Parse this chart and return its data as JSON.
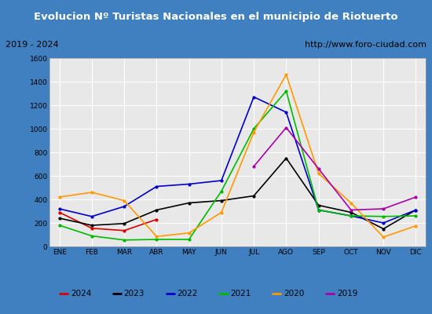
{
  "title": "Evolucion Nº Turistas Nacionales en el municipio de Riotuerto",
  "subtitle_left": "2019 - 2024",
  "subtitle_right": "http://www.foro-ciudad.com",
  "months": [
    "ENE",
    "FEB",
    "MAR",
    "ABR",
    "MAY",
    "JUN",
    "JUL",
    "AGO",
    "SEP",
    "OCT",
    "NOV",
    "DIC"
  ],
  "series": {
    "2024": [
      290,
      155,
      135,
      230,
      null,
      null,
      null,
      null,
      null,
      null,
      null,
      null
    ],
    "2023": [
      240,
      180,
      195,
      310,
      370,
      390,
      430,
      750,
      350,
      290,
      150,
      310
    ],
    "2022": [
      320,
      255,
      340,
      510,
      530,
      560,
      1270,
      1140,
      310,
      260,
      200,
      310
    ],
    "2021": [
      180,
      90,
      55,
      60,
      60,
      470,
      1000,
      1320,
      310,
      260,
      255,
      260
    ],
    "2020": [
      420,
      460,
      390,
      85,
      115,
      290,
      970,
      1460,
      620,
      370,
      80,
      175
    ],
    "2019": [
      null,
      null,
      null,
      null,
      null,
      null,
      680,
      1010,
      660,
      310,
      320,
      420
    ]
  },
  "colors": {
    "2024": "#dd0000",
    "2023": "#000000",
    "2022": "#0000cc",
    "2021": "#00bb00",
    "2020": "#ff9900",
    "2019": "#aa00aa"
  },
  "ylim": [
    0,
    1600
  ],
  "yticks": [
    0,
    200,
    400,
    600,
    800,
    1000,
    1200,
    1400,
    1600
  ],
  "title_bg_color": "#4080c0",
  "title_text_color": "#ffffff",
  "plot_bg_color": "#e8e8e8",
  "header_bg_color": "#d0d0d0",
  "grid_color": "#ffffff",
  "outer_bg_color": "#4080c0",
  "legend_bg_color": "#f0f0f0",
  "legend_border_color": "#000000",
  "years_order": [
    "2024",
    "2023",
    "2022",
    "2021",
    "2020",
    "2019"
  ]
}
